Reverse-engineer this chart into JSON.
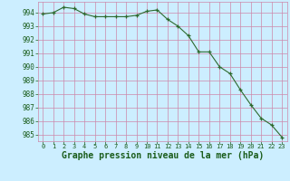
{
  "x": [
    0,
    1,
    2,
    3,
    4,
    5,
    6,
    7,
    8,
    9,
    10,
    11,
    12,
    13,
    14,
    15,
    16,
    17,
    18,
    19,
    20,
    21,
    22,
    23
  ],
  "y": [
    993.9,
    994.0,
    994.4,
    994.3,
    993.9,
    993.7,
    993.7,
    993.7,
    993.7,
    993.8,
    994.1,
    994.2,
    993.5,
    993.0,
    992.3,
    991.1,
    991.1,
    990.0,
    989.5,
    988.3,
    987.2,
    986.2,
    985.7,
    984.8
  ],
  "line_color": "#2d6a2d",
  "marker": "+",
  "marker_color": "#2d6a2d",
  "background_color": "#cceeff",
  "xlabel": "Graphe pression niveau de la mer (hPa)",
  "xlabel_color": "#1a5c1a",
  "xlabel_fontsize": 7.0,
  "tick_color": "#1a5c1a",
  "ytick_values": [
    985,
    986,
    987,
    988,
    989,
    990,
    991,
    992,
    993,
    994
  ],
  "ylim": [
    984.5,
    994.8
  ],
  "xlim": [
    -0.5,
    23.5
  ],
  "xtick_labels": [
    "0",
    "1",
    "2",
    "3",
    "4",
    "5",
    "6",
    "7",
    "8",
    "9",
    "10",
    "11",
    "12",
    "13",
    "14",
    "15",
    "16",
    "17",
    "18",
    "19",
    "20",
    "21",
    "22",
    "23"
  ],
  "grid_color": "#cc88aa"
}
